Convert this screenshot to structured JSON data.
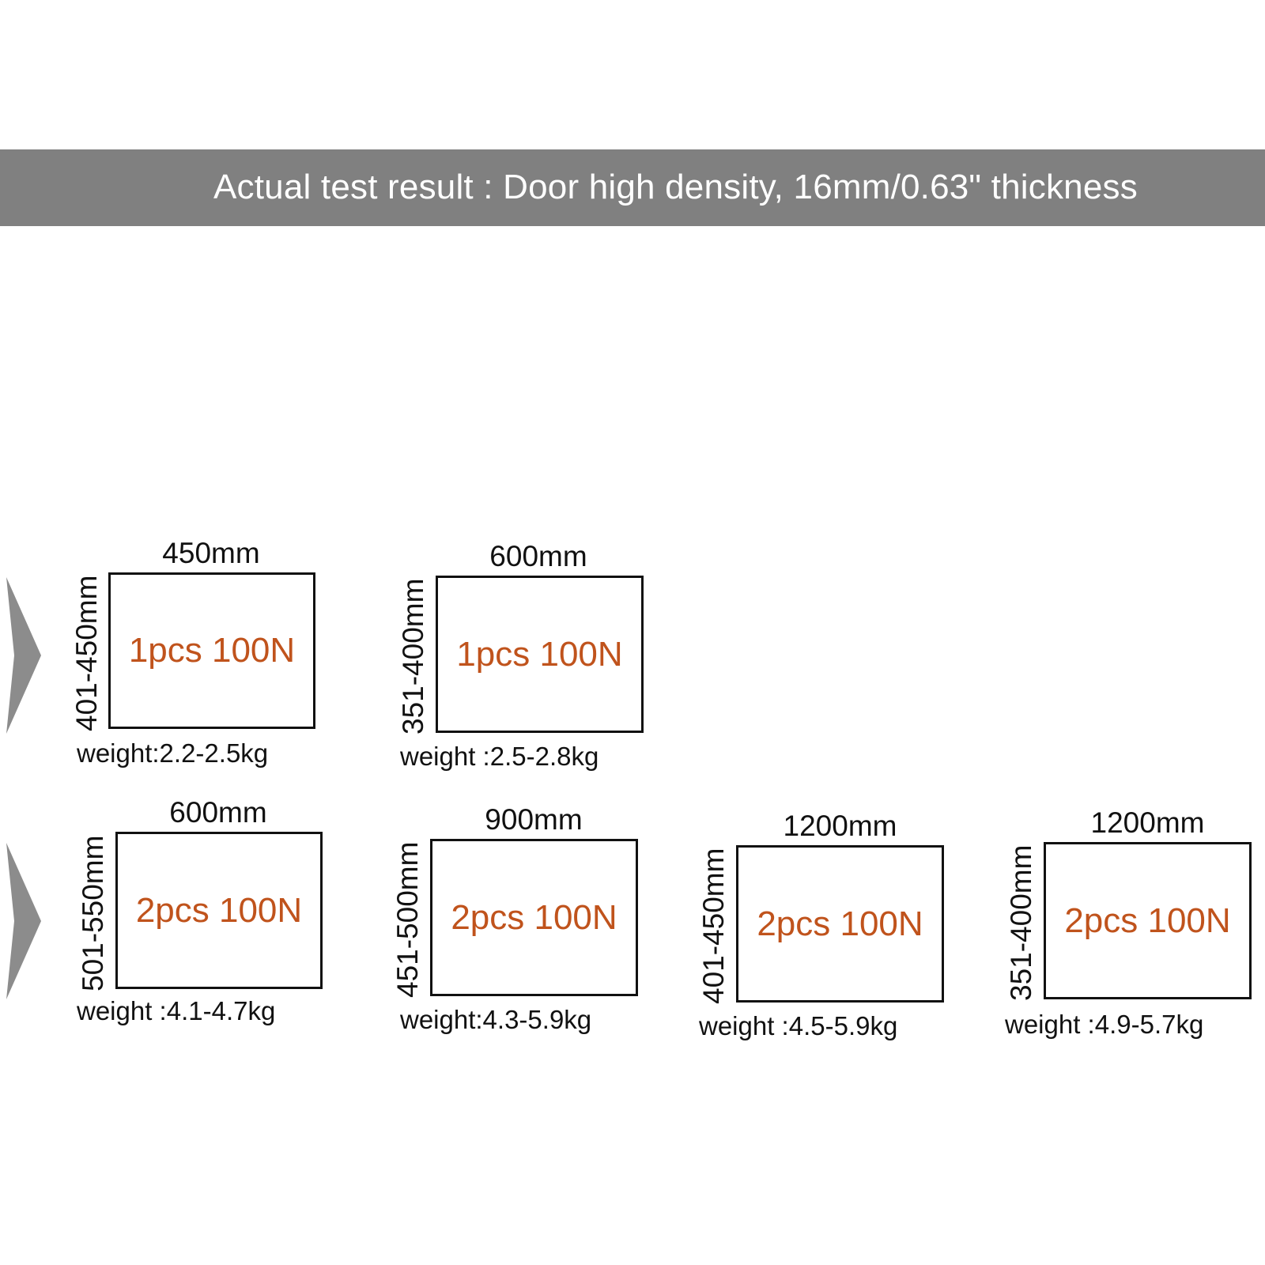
{
  "banner": {
    "title": "Actual test result : Door high density, 16mm/0.63\" thickness",
    "background_color": "#808080",
    "text_color": "#ffffff"
  },
  "accent_color": "#c0531c",
  "rows": [
    {
      "arrow_icon": "chevron-right-icon",
      "panels": [
        {
          "width": "450mm",
          "height": "401-450mm",
          "spec": "1pcs 100N",
          "weight": "weight:2.2-2.5kg"
        },
        {
          "width": "600mm",
          "height": "351-400mm",
          "spec": "1pcs 100N",
          "weight": "weight :2.5-2.8kg"
        }
      ]
    },
    {
      "arrow_icon": "chevron-right-icon",
      "panels": [
        {
          "width": "600mm",
          "height": "501-550mm",
          "spec": "2pcs 100N",
          "weight": "weight :4.1-4.7kg"
        },
        {
          "width": "900mm",
          "height": "451-500mm",
          "spec": "2pcs 100N",
          "weight": "weight:4.3-5.9kg"
        },
        {
          "width": "1200mm",
          "height": "401-450mm",
          "spec": "2pcs 100N",
          "weight": "weight :4.5-5.9kg"
        },
        {
          "width": "1200mm",
          "height": "351-400mm",
          "spec": "2pcs 100N",
          "weight": "weight :4.9-5.7kg"
        }
      ]
    }
  ]
}
